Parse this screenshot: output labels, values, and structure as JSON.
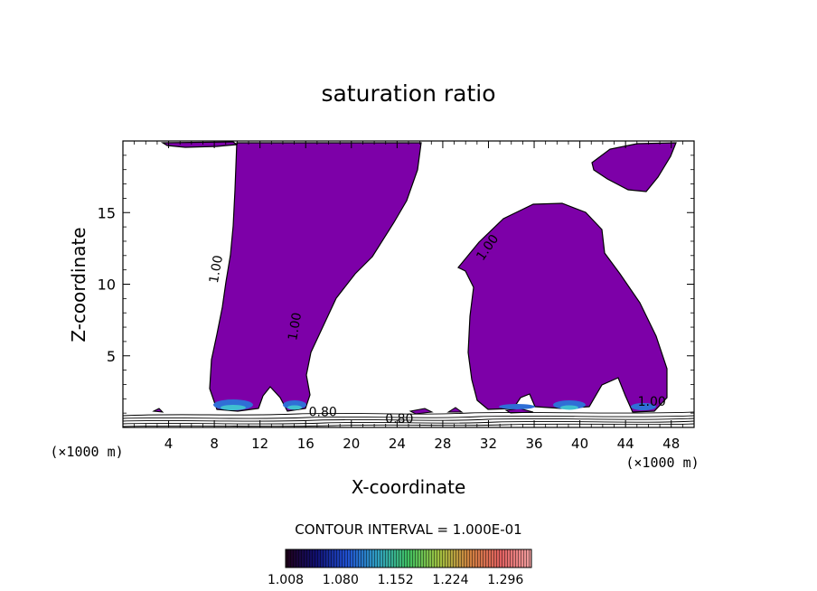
{
  "chart_data": {
    "type": "contour",
    "title": "saturation ratio",
    "xlabel": "X-coordinate",
    "ylabel": "Z-coordinate",
    "x_unit": "(×1000 m)",
    "z_unit": "(×1000 m)",
    "xlim": [
      0,
      50
    ],
    "zlim": [
      0,
      20
    ],
    "x_ticks": [
      4,
      8,
      12,
      16,
      20,
      24,
      28,
      32,
      36,
      40,
      44,
      48
    ],
    "z_ticks": [
      5,
      10,
      15
    ],
    "contour_labels": [
      {
        "text": "1.00",
        "x": 8.5,
        "z": 11.0,
        "angle": -80
      },
      {
        "text": "1.00",
        "x": 15.4,
        "z": 7.0,
        "angle": -80
      },
      {
        "text": "1.00",
        "x": 32.2,
        "z": 12.4,
        "angle": -55
      },
      {
        "text": "1.00",
        "x": 46.3,
        "z": 1.5,
        "angle": 0
      },
      {
        "text": "0.80",
        "x": 17.5,
        "z": 0.8,
        "angle": 0
      },
      {
        "text": "0.80",
        "x": 24.2,
        "z": 0.3,
        "angle": 0
      }
    ],
    "contour_interval_label": "CONTOUR INTERVAL = 1.000E-01",
    "colorbar": {
      "tick_labels": [
        "1.008",
        "1.080",
        "1.152",
        "1.224",
        "1.296"
      ],
      "min": 1.008,
      "max": 1.33,
      "colors": [
        "#200018",
        "#101070",
        "#2050d0",
        "#30a0c0",
        "#40c060",
        "#a0c040",
        "#d08040",
        "#e06060",
        "#f0a0a0"
      ]
    },
    "fill_color": "#7d00a8",
    "grid": false,
    "legend": "none"
  }
}
